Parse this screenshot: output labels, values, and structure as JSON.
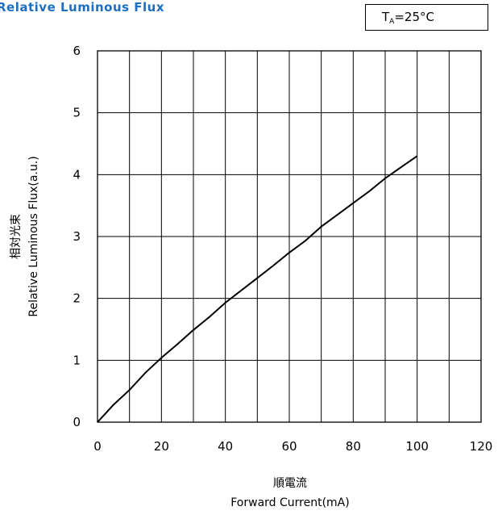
{
  "header": {
    "title": "Relative Luminous Flux",
    "condition_main": "T",
    "condition_sub": "A",
    "condition_rest": "=25°C"
  },
  "colors": {
    "title": "#1e6fbf",
    "line": "#000000",
    "grid": "#000000"
  },
  "chart_data": {
    "type": "line",
    "title": "Relative Luminous Flux",
    "annotation": "TA=25°C",
    "xlabel_jp": "順電流",
    "xlabel": "Forward Current(mA)",
    "ylabel_jp": "相対光束",
    "ylabel": "Relative Luminous Flux(a.u.)",
    "xlim": [
      0,
      120
    ],
    "ylim": [
      0,
      6
    ],
    "xticks": [
      0,
      20,
      40,
      60,
      80,
      100,
      120
    ],
    "yticks": [
      0,
      1,
      2,
      3,
      4,
      5,
      6
    ],
    "grid": true,
    "series": [
      {
        "x": [
          0,
          5,
          10,
          15,
          20,
          25,
          30,
          35,
          40,
          45,
          50,
          55,
          60,
          65,
          70,
          75,
          80,
          85,
          90,
          95,
          100
        ],
        "y": [
          0,
          0.28,
          0.52,
          0.8,
          1.04,
          1.26,
          1.49,
          1.7,
          1.93,
          2.13,
          2.33,
          2.53,
          2.74,
          2.93,
          3.16,
          3.35,
          3.54,
          3.73,
          3.94,
          4.12,
          4.3
        ]
      }
    ]
  }
}
